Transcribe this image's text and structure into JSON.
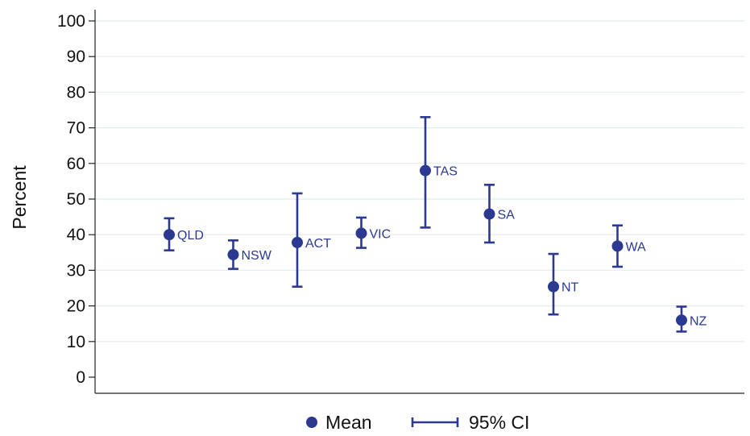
{
  "chart_data": {
    "type": "scatter",
    "title": "",
    "xlabel": "",
    "ylabel": "Percent",
    "ylim": [
      0,
      100
    ],
    "yticks": [
      0,
      10,
      20,
      30,
      40,
      50,
      60,
      70,
      80,
      90,
      100
    ],
    "grid": true,
    "color": "#2b3990",
    "points": [
      {
        "label": "QLD",
        "mean": 40.0,
        "lower": 35.6,
        "upper": 44.6
      },
      {
        "label": "NSW",
        "mean": 34.4,
        "lower": 30.4,
        "upper": 38.4
      },
      {
        "label": "ACT",
        "mean": 37.8,
        "lower": 25.4,
        "upper": 51.6
      },
      {
        "label": "VIC",
        "mean": 40.4,
        "lower": 36.3,
        "upper": 44.8
      },
      {
        "label": "TAS",
        "mean": 58.0,
        "lower": 42.0,
        "upper": 73.0
      },
      {
        "label": "SA",
        "mean": 45.8,
        "lower": 37.8,
        "upper": 54.0
      },
      {
        "label": "NT",
        "mean": 25.4,
        "lower": 17.6,
        "upper": 34.6
      },
      {
        "label": "WA",
        "mean": 36.8,
        "lower": 31.0,
        "upper": 42.6
      },
      {
        "label": "NZ",
        "mean": 16.0,
        "lower": 12.8,
        "upper": 19.8
      }
    ],
    "legend": {
      "position": "bottom",
      "items": [
        {
          "label": "Mean",
          "symbol": "dot"
        },
        {
          "label": "95% CI",
          "symbol": "capped-line"
        }
      ]
    }
  }
}
